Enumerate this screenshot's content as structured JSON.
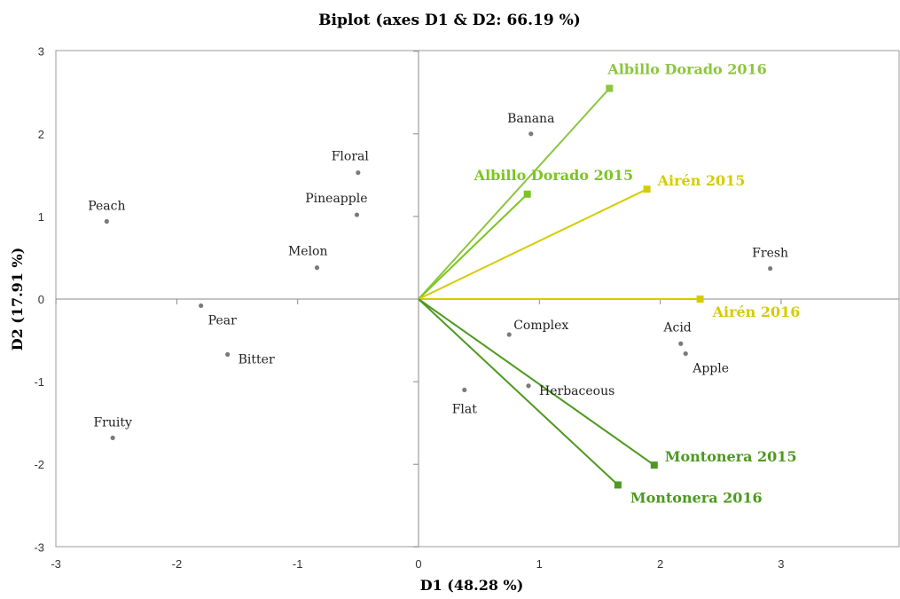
{
  "chart_data": {
    "type": "scatter",
    "title": "Biplot (axes D1 & D2: 66.19 %)",
    "xlabel": "D1 (48.28 %)",
    "ylabel": "D2 (17.91 %)",
    "xlim": [
      -3,
      4
    ],
    "ylim": [
      -3,
      3
    ],
    "xticks": [
      "-3",
      "-2",
      "-1",
      "0",
      "1",
      "2",
      "3"
    ],
    "yticks": [
      "3",
      "2",
      "1",
      "0",
      "-1",
      "-2",
      "-3"
    ],
    "grid": false,
    "variables": [
      {
        "name": "Peach",
        "x": -2.58,
        "y": 0.94,
        "label_pos": "above"
      },
      {
        "name": "Pear",
        "x": -1.8,
        "y": -0.08,
        "label_pos": "below-right"
      },
      {
        "name": "Bitter",
        "x": -1.58,
        "y": -0.67,
        "label_pos": "right"
      },
      {
        "name": "Fruity",
        "x": -2.53,
        "y": -1.68,
        "label_pos": "above"
      },
      {
        "name": "Floral",
        "x": -0.5,
        "y": 1.53,
        "label_pos": "above-left"
      },
      {
        "name": "Pineapple",
        "x": -0.51,
        "y": 1.02,
        "label_pos": "above-left"
      },
      {
        "name": "Melon",
        "x": -0.84,
        "y": 0.38,
        "label_pos": "above-left"
      },
      {
        "name": "Banana",
        "x": 0.93,
        "y": 2.0,
        "label_pos": "above"
      },
      {
        "name": "Complex",
        "x": 0.75,
        "y": -0.43,
        "label_pos": "right-up"
      },
      {
        "name": "Herbaceous",
        "x": 0.91,
        "y": -1.05,
        "label_pos": "right"
      },
      {
        "name": "Flat",
        "x": 0.38,
        "y": -1.1,
        "label_pos": "below"
      },
      {
        "name": "Fresh",
        "x": 2.91,
        "y": 0.37,
        "label_pos": "above"
      },
      {
        "name": "Acid",
        "x": 2.17,
        "y": -0.54,
        "label_pos": "above-left"
      },
      {
        "name": "Apple",
        "x": 2.21,
        "y": -0.66,
        "label_pos": "below-right"
      }
    ],
    "series": [
      {
        "name": "Albillo Dorado 2016",
        "x": 1.58,
        "y": 2.55,
        "color": "#8cc63f",
        "label_pos": "above-right"
      },
      {
        "name": "Albillo Dorado 2015",
        "x": 0.9,
        "y": 1.27,
        "color": "#7cc520",
        "label_pos": "above"
      },
      {
        "name": "Airén 2015",
        "x": 1.89,
        "y": 1.33,
        "color": "#d4cc00",
        "label_pos": "right"
      },
      {
        "name": "Airén 2016",
        "x": 2.33,
        "y": 0.0,
        "color": "#d4cc00",
        "label_pos": "below-right"
      },
      {
        "name": "Montonera 2015",
        "x": 1.95,
        "y": -2.01,
        "color": "#4d9a1e",
        "label_pos": "right"
      },
      {
        "name": "Montonera 2016",
        "x": 1.65,
        "y": -2.25,
        "color": "#4d9a1e",
        "label_pos": "below-right"
      }
    ]
  }
}
